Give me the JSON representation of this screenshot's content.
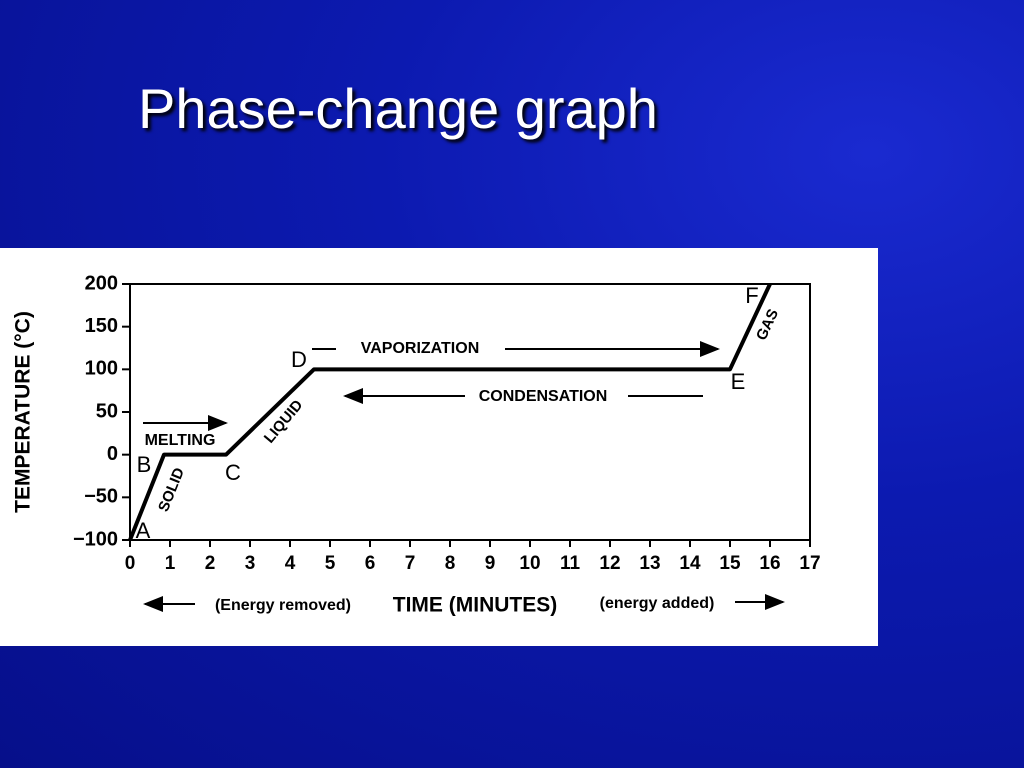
{
  "slide_title": "Phase-change graph",
  "chart_data": {
    "type": "line",
    "xlabel": "TIME (MINUTES)",
    "ylabel": "TEMPERATURE  (°C)",
    "x": [
      0,
      0.85,
      2.4,
      4.6,
      15,
      16
    ],
    "values": [
      -100,
      0,
      0,
      100,
      100,
      200
    ],
    "point_labels": [
      "A",
      "B",
      "C",
      "D",
      "E",
      "F"
    ],
    "color": "#000000",
    "xlim": [
      0,
      17
    ],
    "ylim": [
      -100,
      200
    ],
    "xticks": [
      0,
      1,
      2,
      3,
      4,
      5,
      6,
      7,
      8,
      9,
      10,
      11,
      12,
      13,
      14,
      15,
      16,
      17
    ],
    "yticks": [
      {
        "value": -100,
        "label": "−100"
      },
      {
        "value": -50,
        "label": "−50"
      },
      0,
      50,
      100,
      150,
      200
    ],
    "annotations": [
      "MELTING",
      "VAPORIZATION",
      "CONDENSATION",
      "SOLID",
      "LIQUID",
      "GAS",
      "(Energy removed)",
      "(energy added)"
    ]
  }
}
